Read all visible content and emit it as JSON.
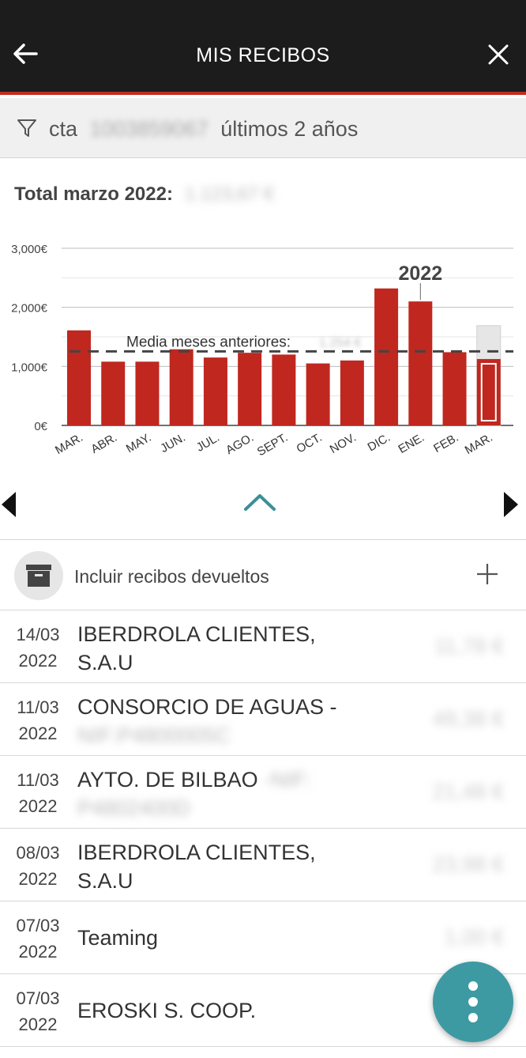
{
  "header": {
    "title": "MIS RECIBOS"
  },
  "filter": {
    "prefix": "cta",
    "account": "1003859067",
    "period": "últimos 2 años"
  },
  "total": {
    "label": "Total marzo 2022:",
    "amount": "1.123,67 €"
  },
  "colors": {
    "bar": "#c0271f",
    "header_bg": "#1c1c1c",
    "accent_line": "#c22a1f",
    "fab": "#3e9aa2",
    "chevron": "#3b8f97"
  },
  "chart_data": {
    "type": "bar",
    "categories": [
      "MAR.",
      "ABR.",
      "MAY.",
      "JUN.",
      "JUL.",
      "AGO.",
      "SEPT.",
      "OCT.",
      "NOV.",
      "DIC.",
      "ENE.",
      "FEB.",
      "MAR."
    ],
    "values": [
      1610,
      1080,
      1080,
      1290,
      1150,
      1230,
      1200,
      1050,
      1100,
      2320,
      2100,
      1240,
      1124
    ],
    "projected_last": 1690,
    "average": 1254,
    "average_label": "Media meses anteriores:",
    "average_value": "1.254 €",
    "year_marker": "2022",
    "year_marker_index": 10,
    "yticks": [
      {
        "value": 0,
        "label": "0€"
      },
      {
        "value": 1000,
        "label": "1,000€"
      },
      {
        "value": 2000,
        "label": "2,000€"
      },
      {
        "value": 3000,
        "label": "3,000€"
      }
    ],
    "ylim": [
      0,
      3000
    ]
  },
  "returned": {
    "label": "Incluir recibos devueltos"
  },
  "receipts": [
    {
      "date1": "14/03",
      "date2": "2022",
      "name1": "IBERDROLA CLIENTES,",
      "name2": "S.A.U",
      "name2_blurred": false,
      "amount": "11,78 €"
    },
    {
      "date1": "11/03",
      "date2": "2022",
      "name1": "CONSORCIO DE AGUAS -",
      "name2": "NIF:P4800005C",
      "name2_blurred": true,
      "amount": "49,38 €"
    },
    {
      "date1": "11/03",
      "date2": "2022",
      "name1": "AYTO. DE BILBAO",
      "name1_extra": " -NIF:",
      "name2": "P4802400D",
      "name2_blurred": true,
      "amount": "21,48 €"
    },
    {
      "date1": "08/03",
      "date2": "2022",
      "name1": "IBERDROLA CLIENTES,",
      "name2": "S.A.U",
      "name2_blurred": false,
      "amount": "23,98 €"
    },
    {
      "date1": "07/03",
      "date2": "2022",
      "name1": "Teaming",
      "amount": "1,00 €"
    },
    {
      "date1": "07/03",
      "date2": "2022",
      "name1": "EROSKI S. COOP.",
      "amount": ""
    }
  ]
}
